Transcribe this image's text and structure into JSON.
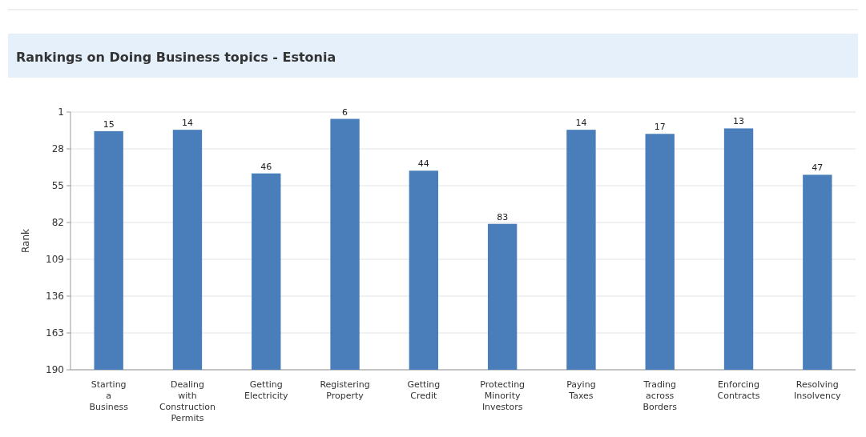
{
  "chart_data": {
    "type": "bar",
    "title": "Rankings on Doing Business topics - Estonia",
    "ylabel": "Rank",
    "categories": [
      "Starting a Business",
      "Dealing with Construction Permits",
      "Getting Electricity",
      "Registering Property",
      "Getting Credit",
      "Protecting Minority Investors",
      "Paying Taxes",
      "Trading across Borders",
      "Enforcing Contracts",
      "Resolving Insolvency"
    ],
    "base": [
      190,
      190,
      190,
      190,
      190,
      190,
      190,
      190,
      190,
      190
    ],
    "values": [
      -175,
      -176,
      -144,
      -184,
      -146,
      -107,
      -176,
      -173,
      -177,
      -143
    ],
    "value_labels": [
      "15",
      "14",
      "46",
      "6",
      "44",
      "83",
      "14",
      "17",
      "13",
      "47"
    ],
    "color": "#4a7ebb",
    "ylim": [
      190,
      1
    ],
    "yticks": [
      1,
      28,
      55,
      82,
      109,
      136,
      163,
      190
    ],
    "grid": "y"
  }
}
